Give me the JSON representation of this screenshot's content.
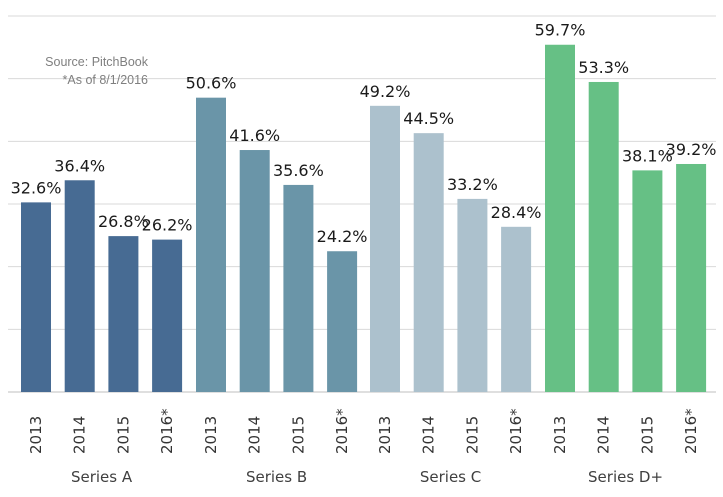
{
  "source": {
    "line1": "Source: PitchBook",
    "line2": "*As of 8/1/2016"
  },
  "colors": {
    "Series A": "#476b93",
    "Series B": "#6a95a8",
    "Series C": "#acc1cd",
    "Series D+": "#66c085"
  },
  "chart_data": {
    "type": "bar",
    "title": "",
    "xlabel": "",
    "ylabel": "",
    "ylim": [
      0,
      60
    ],
    "grid": true,
    "legend": "none",
    "value_format": "percent",
    "groups": [
      {
        "name": "Series A",
        "categories": [
          "2013",
          "2014",
          "2015",
          "2016*"
        ],
        "values": [
          32.6,
          36.4,
          26.8,
          26.2
        ]
      },
      {
        "name": "Series B",
        "categories": [
          "2013",
          "2014",
          "2015",
          "2016*"
        ],
        "values": [
          50.6,
          41.6,
          35.6,
          24.2
        ]
      },
      {
        "name": "Series C",
        "categories": [
          "2013",
          "2014",
          "2015",
          "2016*"
        ],
        "values": [
          49.2,
          44.5,
          33.2,
          28.4
        ]
      },
      {
        "name": "Series D+",
        "categories": [
          "2013",
          "2014",
          "2015",
          "2016*"
        ],
        "values": [
          59.7,
          53.3,
          38.1,
          39.2
        ]
      }
    ]
  }
}
